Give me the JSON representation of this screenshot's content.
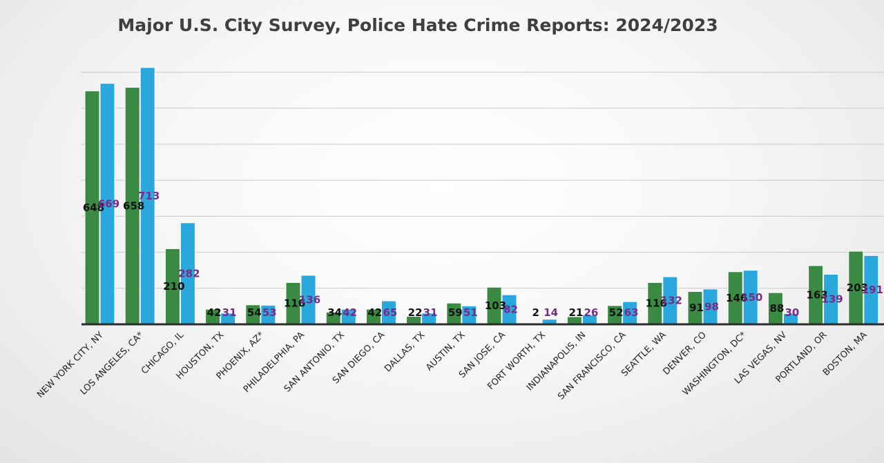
{
  "colors": {
    "series_2024": "#3a8a43",
    "series_2023": "#2aa7dc",
    "label_2024": "#111111",
    "label_2023": "#7a2a86"
  },
  "chart_data": {
    "type": "bar",
    "title": "Major U.S. City Survey, Police Hate Crime Reports: 2024/2023",
    "xlabel": "",
    "ylabel": "",
    "ylim": [
      0,
      700
    ],
    "grid": true,
    "legend": "none",
    "categories": [
      "NEW YORK CITY, NY",
      "LOS ANGELES, CA*",
      "CHICAGO, IL",
      "HOUSTON, TX",
      "PHOENIX, AZ*",
      "PHILADELPHIA, PA",
      "SAN ANTONIO, TX",
      "SAN DIEGO, CA",
      "DALLAS, TX",
      "AUSTIN, TX",
      "SAN JOSE, CA",
      "FORT WORTH, TX",
      "INDIANAPOLIS, IN",
      "SAN FRANCISCO, CA",
      "SEATTLE, WA",
      "DENVER, CO",
      "WASHINGTON, DC*",
      "LAS VEGAS, NV",
      "PORTLAND, OR",
      "BOSTON, MA"
    ],
    "series": [
      {
        "values": [
          648,
          658,
          210,
          42,
          54,
          116,
          34,
          42,
          22,
          59,
          103,
          2,
          21,
          52,
          116,
          91,
          146,
          88,
          163,
          203
        ]
      },
      {
        "values": [
          669,
          713,
          282,
          31,
          53,
          136,
          42,
          65,
          31,
          51,
          82,
          14,
          26,
          63,
          132,
          98,
          150,
          30,
          139,
          191
        ]
      }
    ]
  }
}
